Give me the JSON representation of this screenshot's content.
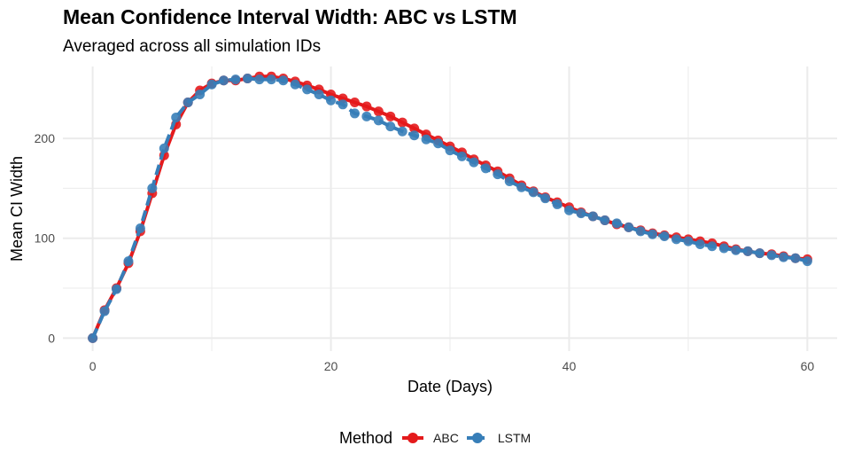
{
  "title": "Mean Confidence Interval Width: ABC vs LSTM",
  "subtitle": "Averaged across all simulation IDs",
  "colors": {
    "ABC": "#E41A1C",
    "LSTM": "#377EB8",
    "grid": "#EBEBEB"
  },
  "legend": {
    "title": "Method",
    "position": "bottom",
    "items": [
      {
        "label": "ABC"
      },
      {
        "label": "LSTM"
      }
    ]
  },
  "chart_data": {
    "type": "line",
    "title": "Mean Confidence Interval Width: ABC vs LSTM",
    "subtitle": "Averaged across all simulation IDs",
    "xlabel": "Date (Days)",
    "ylabel": "Mean CI Width",
    "xlim": [
      -2.5,
      62.5
    ],
    "ylim": [
      -13,
      272
    ],
    "xticks": [
      0,
      20,
      40,
      60
    ],
    "yticks": [
      0,
      100,
      200
    ],
    "grid": true,
    "legend_position": "bottom",
    "x": [
      0,
      1,
      2,
      3,
      4,
      5,
      6,
      7,
      8,
      9,
      10,
      11,
      12,
      13,
      14,
      15,
      16,
      17,
      18,
      19,
      20,
      21,
      22,
      23,
      24,
      25,
      26,
      27,
      28,
      29,
      30,
      31,
      32,
      33,
      34,
      35,
      36,
      37,
      38,
      39,
      40,
      41,
      42,
      43,
      44,
      45,
      46,
      47,
      48,
      49,
      50,
      51,
      52,
      53,
      54,
      55,
      56,
      57,
      58,
      59,
      60
    ],
    "series": [
      {
        "name": "ABC",
        "line_style": "solid",
        "values": [
          0,
          28,
          50,
          75,
          107,
          145,
          183,
          214,
          236,
          248,
          255,
          258,
          258,
          260,
          262,
          262,
          260,
          257,
          253,
          249,
          244,
          240,
          236,
          232,
          227,
          222,
          216,
          210,
          204,
          198,
          192,
          186,
          179,
          173,
          167,
          160,
          153,
          147,
          141,
          136,
          131,
          126,
          122,
          118,
          114,
          111,
          108,
          105,
          103,
          101,
          99,
          97,
          95,
          92,
          89,
          87,
          85,
          84,
          82,
          80,
          79
        ]
      },
      {
        "name": "LSTM",
        "line_style": "dashed",
        "values": [
          0,
          27,
          49,
          77,
          110,
          150,
          190,
          221,
          236,
          244,
          254,
          258,
          259,
          260,
          259,
          259,
          258,
          254,
          249,
          244,
          238,
          234,
          225,
          222,
          218,
          212,
          207,
          203,
          199,
          195,
          188,
          182,
          176,
          170,
          164,
          157,
          151,
          146,
          140,
          134,
          128,
          125,
          122,
          118,
          115,
          111,
          107,
          104,
          102,
          99,
          97,
          94,
          92,
          90,
          88,
          87,
          85,
          83,
          81,
          80,
          77
        ]
      }
    ]
  }
}
